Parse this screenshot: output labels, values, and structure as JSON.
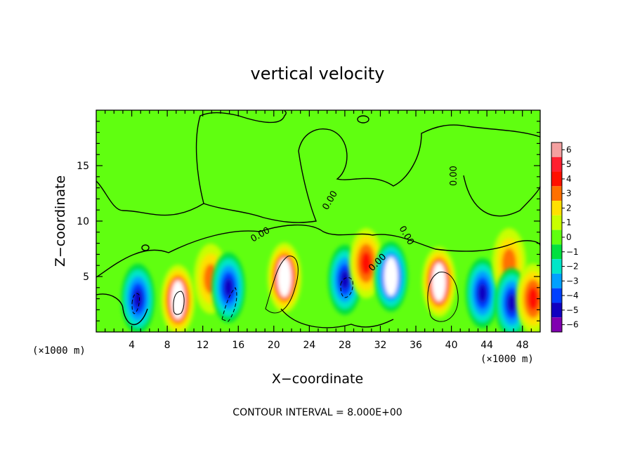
{
  "chart_data": {
    "type": "heatmap",
    "title": "vertical velocity",
    "xlabel": "X−coordinate",
    "ylabel": "Z−coordinate",
    "x_unit": "(×1000 m)",
    "x_ticks": [
      4,
      8,
      12,
      16,
      20,
      24,
      28,
      32,
      36,
      40,
      44,
      48
    ],
    "y_ticks": [
      5,
      10,
      15
    ],
    "xlim": [
      0,
      50
    ],
    "ylim": [
      0,
      20
    ],
    "contour_note": "CONTOUR INTERVAL = 8.000E+00",
    "contour_label": "0.00",
    "colorbar": {
      "levels": [
        6,
        5,
        4,
        3,
        2,
        1,
        0,
        -1,
        -2,
        -3,
        -4,
        -5,
        -6
      ],
      "tick_labels": [
        "6",
        "5",
        "4",
        "3",
        "2",
        "1",
        "0",
        "−1",
        "−2",
        "−3",
        "−4",
        "−5",
        "−6"
      ],
      "colors": [
        "#f4a0a0",
        "#ff2030",
        "#ff1000",
        "#ff7000",
        "#ffe000",
        "#c8ff00",
        "#60ff10",
        "#00e040",
        "#00e6c8",
        "#00a0ff",
        "#0040ff",
        "#1000c0",
        "#8000b0"
      ]
    },
    "background_value": 0,
    "features": [
      {
        "x": 4.7,
        "z": 3.0,
        "w": -4.5
      },
      {
        "x": 9.2,
        "z": 2.9,
        "w": 5.5
      },
      {
        "x": 12.9,
        "z": 4.8,
        "w": 2.5
      },
      {
        "x": 14.9,
        "z": 4.0,
        "w": -4.5
      },
      {
        "x": 21.2,
        "z": 4.9,
        "w": 6.0
      },
      {
        "x": 28.0,
        "z": 4.7,
        "w": -5.0
      },
      {
        "x": 30.4,
        "z": 6.2,
        "w": 3.5
      },
      {
        "x": 33.2,
        "z": 5.0,
        "w": -5.5
      },
      {
        "x": 38.6,
        "z": 4.5,
        "w": 6.0
      },
      {
        "x": 43.5,
        "z": 3.5,
        "w": -5.0
      },
      {
        "x": 46.5,
        "z": 6.2,
        "w": 2.5
      },
      {
        "x": 46.8,
        "z": 2.6,
        "w": -4.5
      },
      {
        "x": 49.2,
        "z": 3.0,
        "w": 4.0
      }
    ]
  }
}
